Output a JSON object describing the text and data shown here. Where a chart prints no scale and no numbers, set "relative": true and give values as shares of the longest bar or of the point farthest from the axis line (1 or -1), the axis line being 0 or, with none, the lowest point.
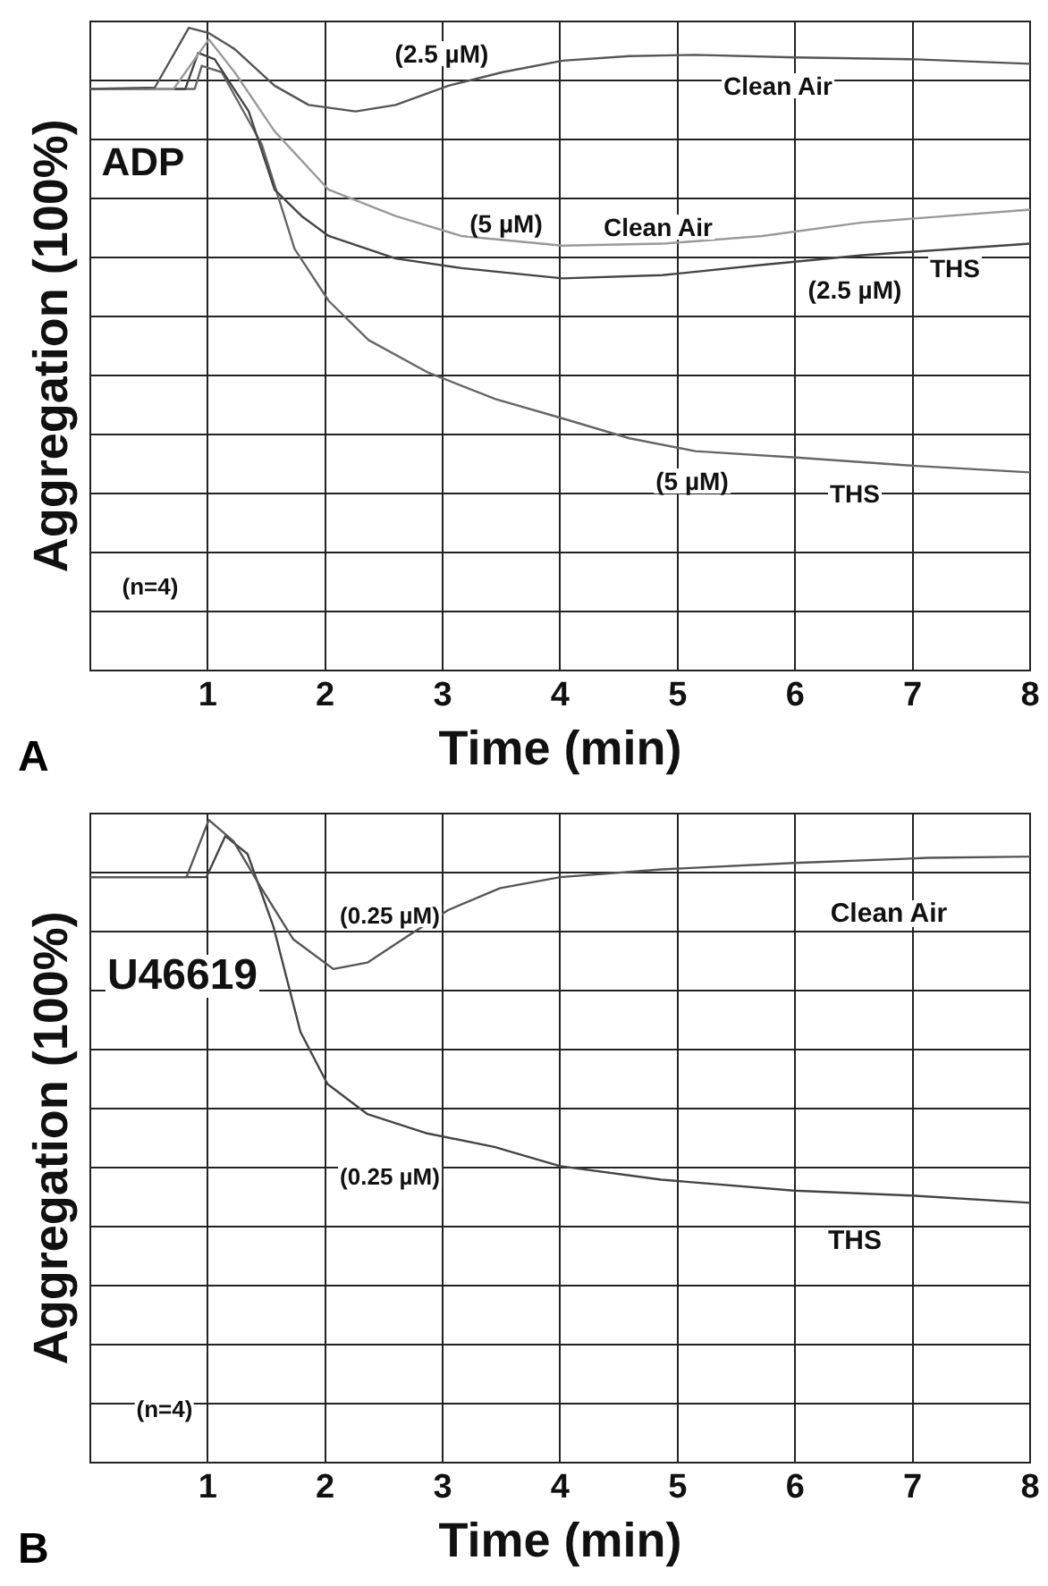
{
  "chart_data": [
    {
      "type": "line",
      "relative": true,
      "xlabel": "Time (min)",
      "ylabel": "Aggregation (100%)",
      "xlim": [
        0,
        8
      ],
      "xticks": [
        1,
        2,
        3,
        4,
        5,
        6,
        7,
        8
      ],
      "grid": true,
      "legend": false,
      "marker": "none",
      "series": [
        {
          "color": "#555555",
          "x": [
            0,
            0.55,
            0.84,
            1.01,
            1.23,
            1.57,
            1.86,
            2.26,
            2.6,
            3.05,
            3.51,
            4.02,
            4.59,
            5.15,
            6.01,
            7.03,
            8
          ],
          "values": [
            0.905,
            0.907,
            1.0,
            0.992,
            0.967,
            0.91,
            0.88,
            0.87,
            0.88,
            0.91,
            0.931,
            0.949,
            0.956,
            0.958,
            0.954,
            0.951,
            0.944
          ]
        },
        {
          "color": "#999999",
          "x": [
            0,
            0.71,
            1.01,
            1.23,
            1.57,
            2.03,
            2.6,
            3.16,
            4.02,
            4.87,
            5.72,
            6.57,
            8
          ],
          "values": [
            0.905,
            0.905,
            0.982,
            0.931,
            0.839,
            0.748,
            0.707,
            0.676,
            0.661,
            0.664,
            0.676,
            0.697,
            0.717
          ]
        },
        {
          "color": "#444444",
          "x": [
            0,
            0.81,
            0.92,
            1.06,
            1.35,
            1.57,
            1.8,
            2.03,
            2.6,
            3.16,
            4.02,
            4.87,
            5.72,
            6.57,
            8
          ],
          "values": [
            0.905,
            0.905,
            0.961,
            0.951,
            0.87,
            0.748,
            0.707,
            0.676,
            0.641,
            0.626,
            0.61,
            0.615,
            0.631,
            0.646,
            0.664
          ]
        },
        {
          "color": "#666666",
          "x": [
            0,
            0.89,
            0.95,
            1.12,
            1.46,
            1.74,
            2.03,
            2.37,
            2.88,
            3.45,
            4.02,
            4.59,
            5.15,
            6.01,
            7.03,
            8
          ],
          "values": [
            0.905,
            0.905,
            0.941,
            0.931,
            0.819,
            0.656,
            0.575,
            0.514,
            0.463,
            0.422,
            0.392,
            0.361,
            0.341,
            0.331,
            0.318,
            0.308
          ]
        }
      ],
      "annotations": [
        "(2.5 µM)",
        "Clean Air",
        "(5 µM)",
        "Clean Air",
        "(2.5 µM)",
        "THS",
        "(5 µM)",
        "THS",
        "ADP",
        "(n=4)",
        "A"
      ]
    },
    {
      "type": "line",
      "relative": true,
      "xlabel": "Time (min)",
      "ylabel": "Aggregation (100%)",
      "xlim": [
        0,
        8
      ],
      "xticks": [
        1,
        2,
        3,
        4,
        5,
        6,
        7,
        8
      ],
      "grid": true,
      "legend": false,
      "marker": "none",
      "series": [
        {
          "color": "#555555",
          "x": [
            0,
            0.82,
            1.01,
            1.22,
            1.45,
            1.73,
            2.07,
            2.36,
            2.7,
            3.05,
            3.49,
            4.0,
            4.86,
            5.99,
            7.13,
            8
          ],
          "values": [
            0.911,
            0.911,
            1.0,
            0.967,
            0.896,
            0.814,
            0.768,
            0.778,
            0.819,
            0.86,
            0.894,
            0.911,
            0.923,
            0.933,
            0.941,
            0.943
          ]
        },
        {
          "color": "#444444",
          "x": [
            0,
            0.99,
            1.15,
            1.34,
            1.56,
            1.79,
            2.02,
            2.36,
            2.87,
            3.44,
            4.0,
            4.86,
            5.99,
            7.02,
            8
          ],
          "values": [
            0.911,
            0.911,
            0.975,
            0.947,
            0.834,
            0.67,
            0.589,
            0.542,
            0.512,
            0.491,
            0.461,
            0.44,
            0.423,
            0.415,
            0.404
          ]
        }
      ],
      "annotations": [
        "(0.25 µM)",
        "Clean Air",
        "U46619",
        "(0.25 µM)",
        "THS",
        "(n=4)",
        "B"
      ]
    }
  ]
}
